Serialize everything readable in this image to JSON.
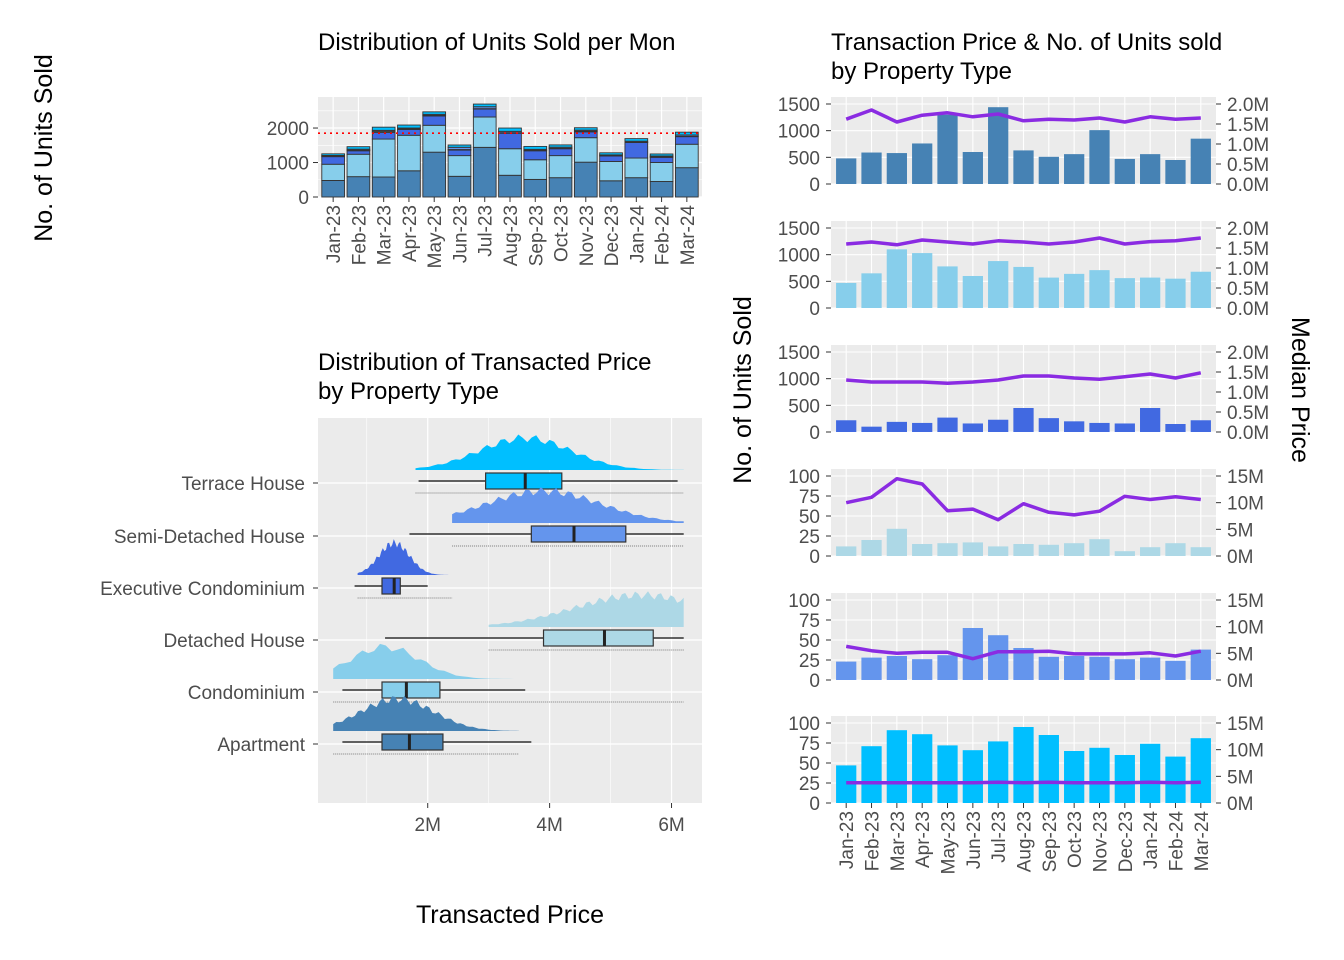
{
  "colors": {
    "panel_bg": "#ebebeb",
    "grid": "#ffffff",
    "median_line": "#8a2be2",
    "mean_line": "#ff0000",
    "apartment": "#4682b4",
    "condominium": "#87ceeb",
    "detached_house": "#add8e6",
    "executive_condominium": "#4169e1",
    "semi_detached_house": "#6495ed",
    "terrace_house": "#00bfff"
  },
  "axis_titles": {
    "left_y": "No. of Units Sold",
    "bottom_x": "Transacted Price",
    "right_y_left": "No. of Units Sold",
    "right_y_right": "Median Price"
  },
  "chart_data": [
    {
      "type": "bar",
      "stacked": true,
      "title": "Distribution of Units Sold per Mon",
      "ylabel": "No. of Units Sold",
      "categories": [
        "Jan-23",
        "Feb-23",
        "Mar-23",
        "Apr-23",
        "May-23",
        "Jun-23",
        "Jul-23",
        "Aug-23",
        "Sep-23",
        "Oct-23",
        "Nov-23",
        "Dec-23",
        "Jan-24",
        "Feb-24",
        "Mar-24"
      ],
      "yticks": [
        "0",
        "1000",
        "2000"
      ],
      "ylim": [
        0,
        2900
      ],
      "mean_line_value": 1850,
      "series": [
        {
          "name": "Apartment",
          "color": "#4682b4",
          "values": [
            480,
            590,
            580,
            760,
            1300,
            600,
            1440,
            630,
            510,
            560,
            1010,
            470,
            560,
            450,
            850
          ]
        },
        {
          "name": "Condominium",
          "color": "#87ceeb",
          "values": [
            470,
            650,
            1100,
            1030,
            780,
            600,
            880,
            770,
            570,
            640,
            710,
            560,
            570,
            550,
            680
          ]
        },
        {
          "name": "Executive Condominium",
          "color": "#4169e1",
          "values": [
            220,
            100,
            190,
            170,
            270,
            160,
            230,
            450,
            260,
            200,
            170,
            160,
            450,
            150,
            220
          ]
        },
        {
          "name": "Detached House",
          "color": "#add8e6",
          "values": [
            12,
            20,
            34,
            15,
            16,
            17,
            12,
            15,
            14,
            16,
            21,
            6,
            11,
            16,
            11
          ]
        },
        {
          "name": "Semi-Detached House",
          "color": "#6495ed",
          "values": [
            23,
            28,
            30,
            26,
            31,
            65,
            56,
            40,
            29,
            30,
            29,
            26,
            28,
            24,
            38
          ]
        },
        {
          "name": "Terrace House",
          "color": "#00bfff",
          "values": [
            47,
            71,
            91,
            86,
            72,
            66,
            77,
            95,
            85,
            65,
            69,
            60,
            74,
            58,
            81
          ]
        }
      ]
    },
    {
      "type": "box",
      "title_lines": [
        "Distribution of Transacted Price",
        "by Property Type"
      ],
      "xlabel": "Transacted Price",
      "xticks": [
        "2M",
        "4M",
        "6M"
      ],
      "xlim": [
        0.2,
        6.5
      ],
      "categories": [
        {
          "name": "Terrace House",
          "color": "#00bfff",
          "min": 1.85,
          "q1": 2.95,
          "median": 3.6,
          "q3": 4.2,
          "max": 6.1,
          "dmin": 1.8,
          "dmax": 6.2,
          "peak": 3.6
        },
        {
          "name": "Semi-Detached House",
          "color": "#6495ed",
          "min": 1.7,
          "q1": 3.7,
          "median": 4.4,
          "q3": 5.25,
          "max": 6.2,
          "dmin": 2.4,
          "dmax": 6.2,
          "peak": 3.9
        },
        {
          "name": "Executive Condominium",
          "color": "#4169e1",
          "min": 0.8,
          "q1": 1.25,
          "median": 1.45,
          "q3": 1.55,
          "max": 2.0,
          "dmin": 0.85,
          "dmax": 2.4,
          "peak": 1.45
        },
        {
          "name": "Detached House",
          "color": "#add8e6",
          "min": 1.3,
          "q1": 3.9,
          "median": 4.9,
          "q3": 5.7,
          "max": 6.2,
          "dmin": 3.0,
          "dmax": 6.2,
          "peak": 5.5
        },
        {
          "name": "Condominium",
          "color": "#87ceeb",
          "min": 0.6,
          "q1": 1.25,
          "median": 1.65,
          "q3": 2.2,
          "max": 3.6,
          "dmin": 0.45,
          "dmax": 6.2,
          "peak": 1.3
        },
        {
          "name": "Apartment",
          "color": "#4682b4",
          "min": 0.6,
          "q1": 1.25,
          "median": 1.7,
          "q3": 2.25,
          "max": 3.7,
          "dmin": 0.45,
          "dmax": 3.5,
          "peak": 1.5
        }
      ]
    },
    {
      "type": "bar+line",
      "title_lines": [
        "Transaction Price & No. of Units sold",
        "by Property Type"
      ],
      "ylabel": "No. of Units Sold",
      "y2label": "Median Price",
      "categories": [
        "Jan-23",
        "Feb-23",
        "Mar-23",
        "Apr-23",
        "May-23",
        "Jun-23",
        "Jul-23",
        "Aug-23",
        "Sep-23",
        "Oct-23",
        "Nov-23",
        "Dec-23",
        "Jan-24",
        "Feb-24",
        "Mar-24"
      ],
      "panels": [
        {
          "color": "#4682b4",
          "ylim": [
            0,
            1500
          ],
          "yticks": [
            "0",
            "500",
            "1000",
            "1500"
          ],
          "y2lim": [
            0,
            2
          ],
          "y2ticks": [
            "0.0M",
            "0.5M",
            "1.0M",
            "1.5M",
            "2.0M"
          ],
          "bars": [
            480,
            590,
            580,
            760,
            1300,
            600,
            1440,
            630,
            510,
            560,
            1010,
            470,
            560,
            450,
            850
          ],
          "median": [
            1.62,
            1.85,
            1.55,
            1.72,
            1.78,
            1.68,
            1.75,
            1.58,
            1.62,
            1.6,
            1.65,
            1.55,
            1.68,
            1.62,
            1.65
          ]
        },
        {
          "color": "#87ceeb",
          "ylim": [
            0,
            1500
          ],
          "yticks": [
            "0",
            "500",
            "1000",
            "1500"
          ],
          "y2lim": [
            0,
            2
          ],
          "y2ticks": [
            "0.0M",
            "0.5M",
            "1.0M",
            "1.5M",
            "2.0M"
          ],
          "bars": [
            470,
            650,
            1100,
            1030,
            780,
            600,
            880,
            770,
            570,
            640,
            710,
            560,
            570,
            550,
            680
          ],
          "median": [
            1.6,
            1.65,
            1.58,
            1.7,
            1.65,
            1.6,
            1.68,
            1.65,
            1.6,
            1.65,
            1.75,
            1.6,
            1.66,
            1.68,
            1.75
          ]
        },
        {
          "color": "#4169e1",
          "ylim": [
            0,
            1500
          ],
          "yticks": [
            "0",
            "500",
            "1000",
            "1500"
          ],
          "y2lim": [
            0,
            2
          ],
          "y2ticks": [
            "0.0M",
            "0.5M",
            "1.0M",
            "1.5M",
            "2.0M"
          ],
          "bars": [
            220,
            100,
            190,
            170,
            270,
            160,
            230,
            450,
            260,
            200,
            170,
            160,
            450,
            150,
            220
          ],
          "median": [
            1.3,
            1.25,
            1.25,
            1.25,
            1.22,
            1.25,
            1.3,
            1.4,
            1.4,
            1.35,
            1.32,
            1.38,
            1.45,
            1.35,
            1.48
          ]
        },
        {
          "color": "#add8e6",
          "ylim": [
            0,
            100
          ],
          "yticks": [
            "0",
            "25",
            "50",
            "75",
            "100"
          ],
          "y2lim": [
            0,
            15
          ],
          "y2ticks": [
            "0M",
            "5M",
            "10M",
            "15M"
          ],
          "bars": [
            12,
            20,
            34,
            15,
            16,
            17,
            12,
            15,
            14,
            16,
            21,
            6,
            11,
            16,
            11
          ],
          "median": [
            10,
            11,
            14.5,
            13.5,
            8.5,
            8.8,
            6.8,
            9.8,
            8.2,
            7.7,
            8.4,
            11.2,
            10.6,
            11.1,
            10.6
          ]
        },
        {
          "color": "#6495ed",
          "ylim": [
            0,
            100
          ],
          "yticks": [
            "0",
            "25",
            "50",
            "75",
            "100"
          ],
          "y2lim": [
            0,
            15
          ],
          "y2ticks": [
            "0M",
            "5M",
            "10M",
            "15M"
          ],
          "bars": [
            23,
            28,
            30,
            26,
            31,
            65,
            56,
            40,
            29,
            30,
            29,
            26,
            28,
            24,
            38
          ],
          "median": [
            6.3,
            5.5,
            5.0,
            5.2,
            5.2,
            4.0,
            5.3,
            5.3,
            5.4,
            4.9,
            4.9,
            4.9,
            5.1,
            4.5,
            5.4
          ]
        },
        {
          "color": "#00bfff",
          "ylim": [
            0,
            100
          ],
          "yticks": [
            "0",
            "25",
            "50",
            "75",
            "100"
          ],
          "y2lim": [
            0,
            15
          ],
          "y2ticks": [
            "0M",
            "5M",
            "10M",
            "15M"
          ],
          "bars": [
            47,
            71,
            91,
            86,
            72,
            66,
            77,
            95,
            85,
            65,
            69,
            60,
            74,
            58,
            81
          ],
          "median": [
            3.8,
            3.8,
            3.8,
            3.8,
            3.8,
            3.8,
            3.9,
            3.8,
            3.9,
            3.8,
            3.8,
            3.8,
            3.9,
            3.8,
            3.9
          ]
        }
      ]
    }
  ]
}
